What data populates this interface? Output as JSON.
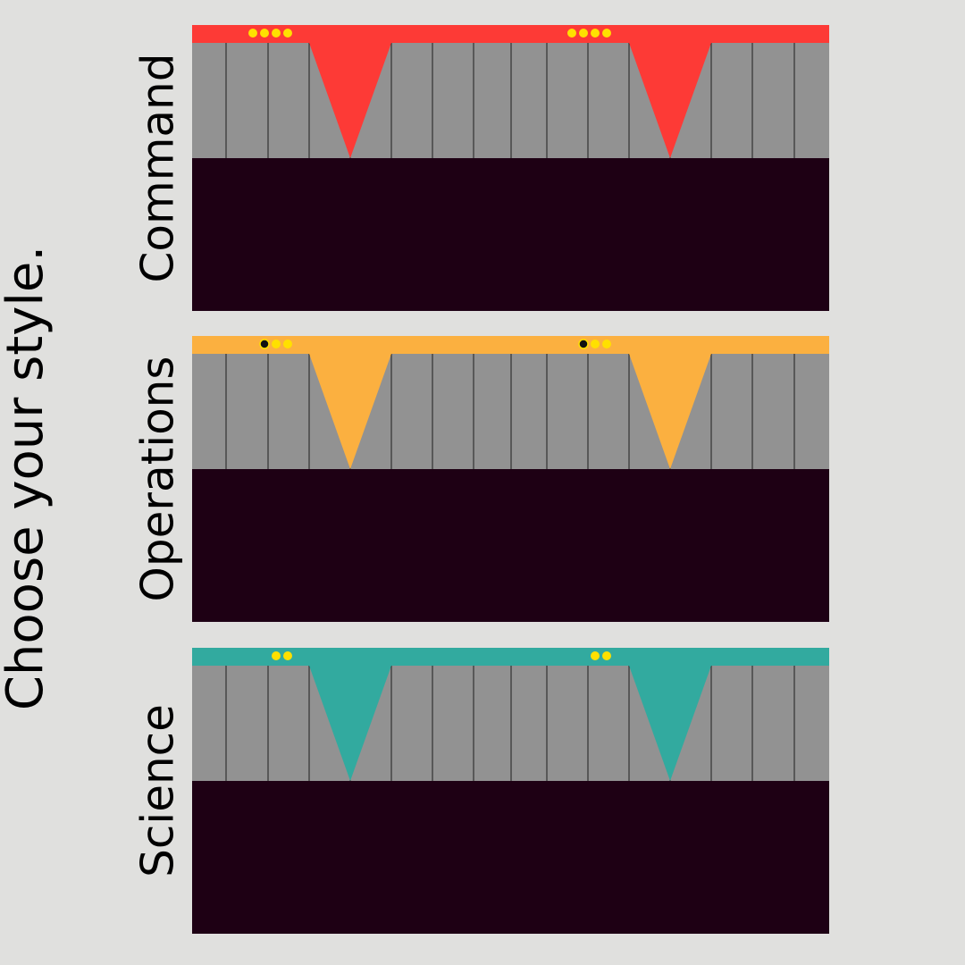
{
  "title": "Choose your style.",
  "panels": [
    {
      "label": "Command",
      "color": "#fd3a36"
    },
    {
      "label": "Operations",
      "color": "#fbb040"
    },
    {
      "label": "Science",
      "color": "#32aa9f"
    }
  ]
}
